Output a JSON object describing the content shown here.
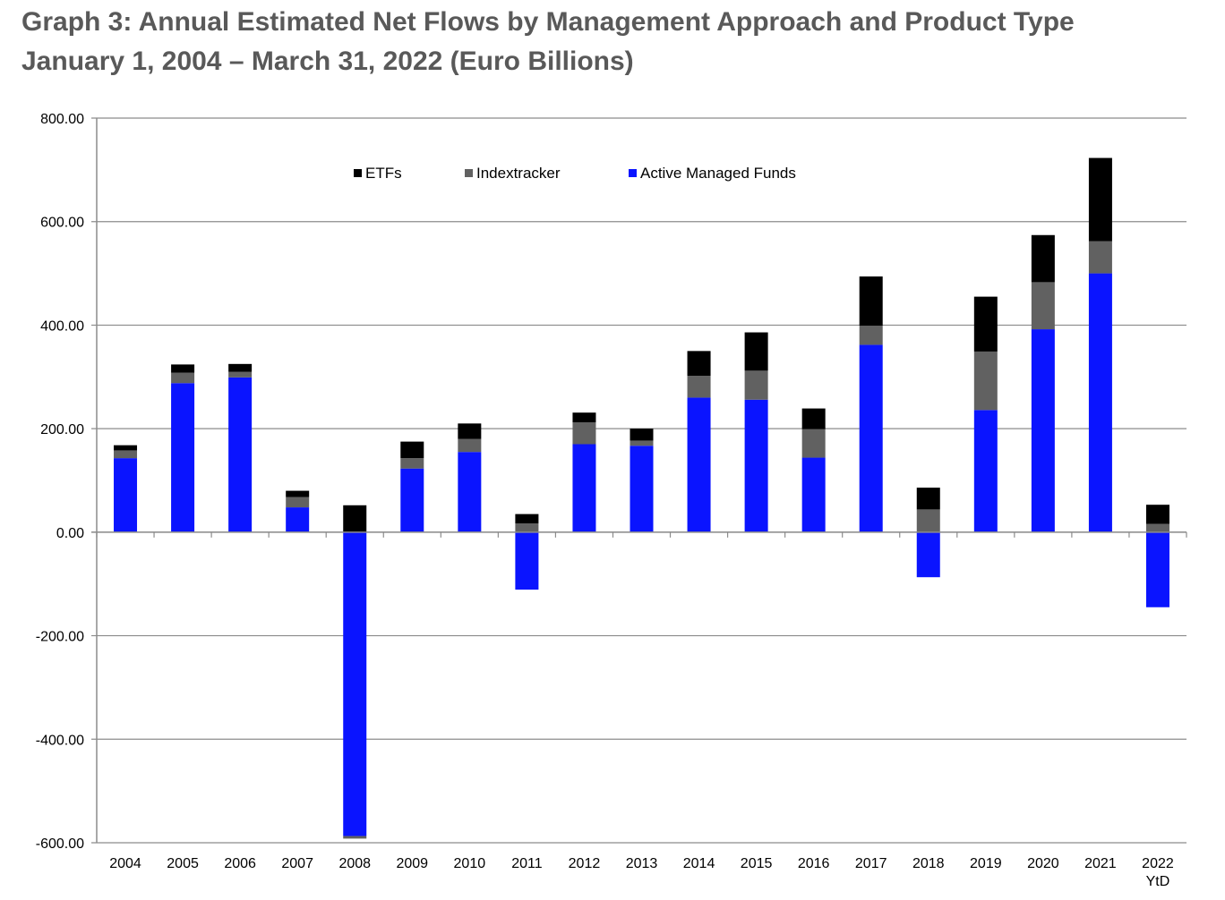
{
  "title": {
    "line1": "Graph 3: Annual Estimated Net Flows by Management Approach and Product Type",
    "line2": "January 1, 2004 – March 31, 2022 (Euro Billions)"
  },
  "colors": {
    "ETFs": "#000000",
    "Indextracker": "#616161",
    "Active Managed Funds": "#0a14ff",
    "grid": "#8c8c8c"
  },
  "chart_data": {
    "type": "bar",
    "stacked": true,
    "categories": [
      "2004",
      "2005",
      "2006",
      "2007",
      "2008",
      "2009",
      "2010",
      "2011",
      "2012",
      "2013",
      "2014",
      "2015",
      "2016",
      "2017",
      "2018",
      "2019",
      "2020",
      "2021",
      "2022 YtD"
    ],
    "category_labels": [
      [
        "2004"
      ],
      [
        "2005"
      ],
      [
        "2006"
      ],
      [
        "2007"
      ],
      [
        "2008"
      ],
      [
        "2009"
      ],
      [
        "2010"
      ],
      [
        "2011"
      ],
      [
        "2012"
      ],
      [
        "2013"
      ],
      [
        "2014"
      ],
      [
        "2015"
      ],
      [
        "2016"
      ],
      [
        "2017"
      ],
      [
        "2018"
      ],
      [
        "2019"
      ],
      [
        "2020"
      ],
      [
        "2021"
      ],
      [
        "2022",
        "YtD"
      ]
    ],
    "series": [
      {
        "name": "Active Managed Funds",
        "values": [
          143,
          288,
          299,
          48,
          -587,
          123,
          155,
          -111,
          170,
          167,
          260,
          256,
          144,
          362,
          -87,
          236,
          392,
          500,
          -145
        ]
      },
      {
        "name": "Indextracker",
        "values": [
          15,
          20,
          11,
          20,
          -5,
          20,
          25,
          17,
          42,
          10,
          42,
          56,
          55,
          37,
          44,
          113,
          91,
          62,
          16
        ]
      },
      {
        "name": "ETFs",
        "values": [
          10,
          16,
          15,
          12,
          52,
          32,
          30,
          18,
          19,
          23,
          48,
          74,
          40,
          95,
          42,
          106,
          91,
          161,
          37
        ]
      }
    ],
    "legend_order": [
      "ETFs",
      "Indextracker",
      "Active Managed Funds"
    ],
    "legend_position": "top-center",
    "yticks": [
      "800.00",
      "600.00",
      "400.00",
      "200.00",
      "0.00",
      "-200.00",
      "-400.00",
      "-600.00"
    ],
    "ylim": [
      -600,
      800
    ],
    "grid": true
  }
}
